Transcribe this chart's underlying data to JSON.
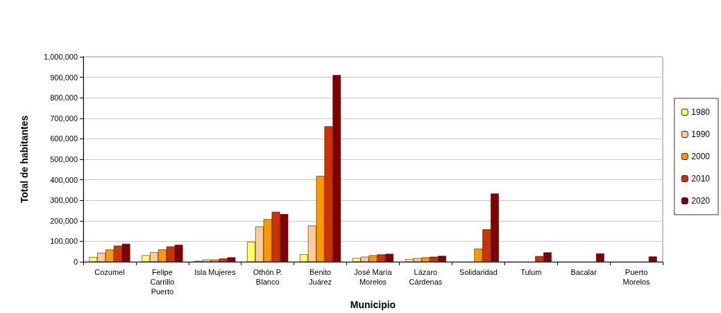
{
  "chart_data": {
    "type": "bar",
    "xlabel": "Municipio",
    "ylabel": "Total de habitantes",
    "categories": [
      "Cozumel",
      "Felipe\nCarrillo\nPuerto",
      "Isla Mujeres",
      "Othón P.\nBlanco",
      "Benito\nJuárez",
      "José María\nMorelos",
      "Lázaro\nCárdenas",
      "Solidaridad",
      "Tulum",
      "Bacalar",
      "Puerto\nMorelos"
    ],
    "series": [
      {
        "name": "1980",
        "color": "#ffff66",
        "values": [
          23000,
          32000,
          5000,
          97000,
          37000,
          18000,
          13000,
          null,
          null,
          null,
          null
        ]
      },
      {
        "name": "1990",
        "color": "#ffcc99",
        "values": [
          44000,
          47000,
          11000,
          172000,
          177000,
          25000,
          18000,
          null,
          null,
          null,
          null
        ]
      },
      {
        "name": "2000",
        "color": "#ff9900",
        "values": [
          60000,
          60000,
          11000,
          208000,
          419000,
          32000,
          22000,
          64000,
          null,
          null,
          null
        ]
      },
      {
        "name": "2010",
        "color": "#cc3300",
        "values": [
          79000,
          75000,
          16000,
          244000,
          661000,
          36000,
          25000,
          159000,
          28000,
          null,
          null
        ]
      },
      {
        "name": "2020",
        "color": "#800000",
        "values": [
          88000,
          83000,
          22000,
          233000,
          911000,
          39000,
          29000,
          333000,
          46000,
          41000,
          26000
        ]
      }
    ],
    "ylim": [
      0,
      1000000
    ],
    "yticks": [
      0,
      {
        "value": 100000,
        "label": "100,000"
      },
      {
        "value": 200000,
        "label": "200,000"
      },
      {
        "value": 300000,
        "label": "300,000"
      },
      {
        "value": 400000,
        "label": "400,000"
      },
      {
        "value": 500000,
        "label": "500,000"
      },
      {
        "value": 600000,
        "label": "600,000"
      },
      {
        "value": 700000,
        "label": "700,000"
      },
      {
        "value": 800000,
        "label": "800,000"
      },
      {
        "value": 900000,
        "label": "900,000"
      },
      {
        "value": 1000000,
        "label": "1,000,000"
      }
    ],
    "grid": "y",
    "legend": "right"
  }
}
